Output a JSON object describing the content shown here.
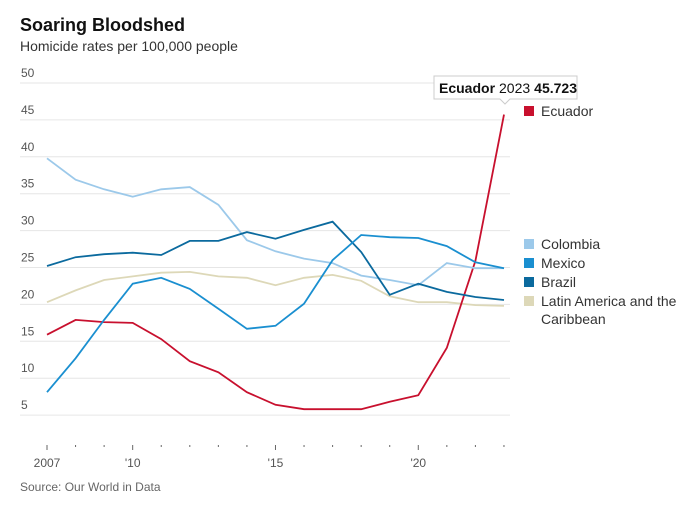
{
  "title": "Soaring Bloodshed",
  "subtitle": "Homicide rates per 100,000 people",
  "source": "Source: Our World in Data",
  "chart_data": {
    "type": "line",
    "title": "Soaring Bloodshed",
    "subtitle": "Homicide rates per 100,000 people",
    "x": [
      2007,
      2008,
      2009,
      2010,
      2011,
      2012,
      2013,
      2014,
      2015,
      2016,
      2017,
      2018,
      2019,
      2020,
      2021,
      2022,
      2023
    ],
    "x_tick_labels": [
      {
        "x": 2007,
        "label": "2007"
      },
      {
        "x": 2010,
        "label": "'10"
      },
      {
        "x": 2015,
        "label": "'15"
      },
      {
        "x": 2020,
        "label": "'20"
      }
    ],
    "y_ticks": [
      5,
      10,
      15,
      20,
      25,
      30,
      35,
      40,
      45,
      50
    ],
    "ylim": [
      0,
      50
    ],
    "grid": true,
    "legend": "right",
    "series": [
      {
        "name": "Ecuador",
        "color": "#c8102e",
        "values": [
          15.9,
          17.9,
          17.6,
          17.5,
          15.3,
          12.3,
          10.8,
          8.1,
          6.4,
          5.8,
          5.8,
          5.8,
          6.8,
          7.7,
          14.1,
          25.9,
          45.723
        ]
      },
      {
        "name": "Colombia",
        "color": "#9cc9ea",
        "values": [
          39.8,
          36.9,
          35.6,
          34.6,
          35.6,
          35.9,
          33.5,
          28.7,
          27.2,
          26.2,
          25.6,
          23.9,
          23.3,
          22.6,
          25.6,
          24.9,
          24.9
        ]
      },
      {
        "name": "Mexico",
        "color": "#1a8fd0",
        "values": [
          8.1,
          12.7,
          17.9,
          22.8,
          23.6,
          22.1,
          19.4,
          16.7,
          17.1,
          20.1,
          26.0,
          29.4,
          29.1,
          29.0,
          27.9,
          25.7,
          24.9
        ]
      },
      {
        "name": "Brazil",
        "color": "#0b6a9e",
        "values": [
          25.2,
          26.4,
          26.8,
          27.0,
          26.7,
          28.6,
          28.6,
          29.8,
          28.9,
          30.1,
          31.2,
          27.1,
          21.3,
          22.8,
          21.7,
          21.0,
          20.6
        ]
      },
      {
        "name": "Latin America and the Caribbean",
        "color": "#ddd8b8",
        "values": [
          20.3,
          21.9,
          23.3,
          23.8,
          24.3,
          24.4,
          23.8,
          23.6,
          22.6,
          23.6,
          24.0,
          23.2,
          21.1,
          20.3,
          20.3,
          19.9,
          19.8
        ]
      }
    ],
    "tooltip": {
      "series": "Ecuador",
      "year": "2023",
      "value": "45.723"
    }
  }
}
